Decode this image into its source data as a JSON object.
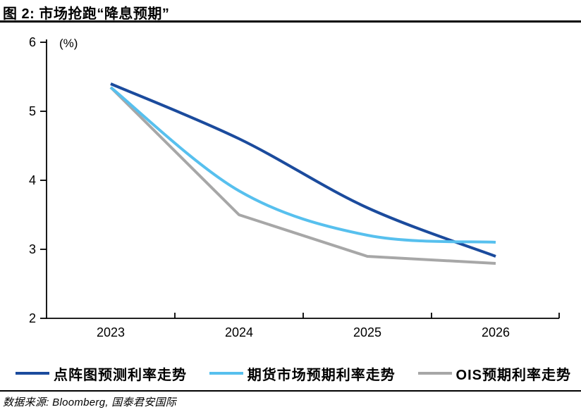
{
  "figure": {
    "title": "图 2:  市场抢跑“降息预期”",
    "source": "数据来源: Bloomberg, 国泰君安国际"
  },
  "chart_data": {
    "type": "line",
    "title": "市场抢跑“降息预期”",
    "unit_label": "(%)",
    "categories": [
      "2023",
      "2024",
      "2025",
      "2026"
    ],
    "xlabel": "",
    "ylabel": "(%)",
    "ylim": [
      2,
      6
    ],
    "yticks": [
      6,
      5,
      4,
      3,
      2
    ],
    "grid": false,
    "legend_position": "bottom",
    "axis_color": "#000000",
    "series": [
      {
        "name": "点阵图预测利率走势",
        "color": "#1B4B9D",
        "smooth": true,
        "values": [
          5.4,
          4.6,
          3.6,
          2.9
        ]
      },
      {
        "name": "期货市场预期利率走势",
        "color": "#57C0EE",
        "smooth": true,
        "values": [
          5.35,
          3.85,
          3.2,
          3.1
        ]
      },
      {
        "name": "OIS预期利率走势",
        "color": "#A7A7A7",
        "smooth": false,
        "values": [
          5.35,
          3.5,
          2.9,
          2.8
        ]
      }
    ]
  }
}
